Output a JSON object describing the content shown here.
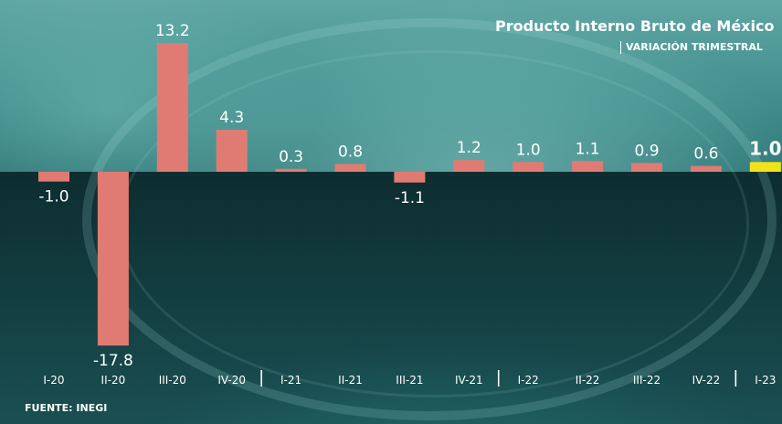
{
  "title": "Producto Interno Bruto de México",
  "subtitle": "VARIACIÓN TRIMESTRAL",
  "source": "FUENTE: INEGI",
  "colors": {
    "bar": "#e07b74",
    "highlight": "#f2e21a",
    "label": "#ffffff"
  },
  "chart_data": {
    "type": "bar",
    "categories": [
      "I-20",
      "II-20",
      "III-20",
      "IV-20",
      "I-21",
      "II-21",
      "III-21",
      "IV-21",
      "I-22",
      "II-22",
      "III-22",
      "IV-22",
      "I-23"
    ],
    "values": [
      -1.0,
      -17.8,
      13.2,
      4.3,
      0.3,
      0.8,
      -1.1,
      1.2,
      1.0,
      1.1,
      0.9,
      0.6,
      1.0
    ],
    "value_labels": [
      "-1.0",
      "-17.8",
      "13.2",
      "4.3",
      "0.3",
      "0.8",
      "-1.1",
      "1.2",
      "1.0",
      "1.1",
      "0.9",
      "0.6",
      "1.0"
    ],
    "highlight_category": "I-23",
    "year_separators_before": [
      "I-21",
      "I-22",
      "I-23"
    ],
    "ylim": [
      -17.8,
      13.2
    ],
    "grid": false,
    "legend": "none"
  }
}
